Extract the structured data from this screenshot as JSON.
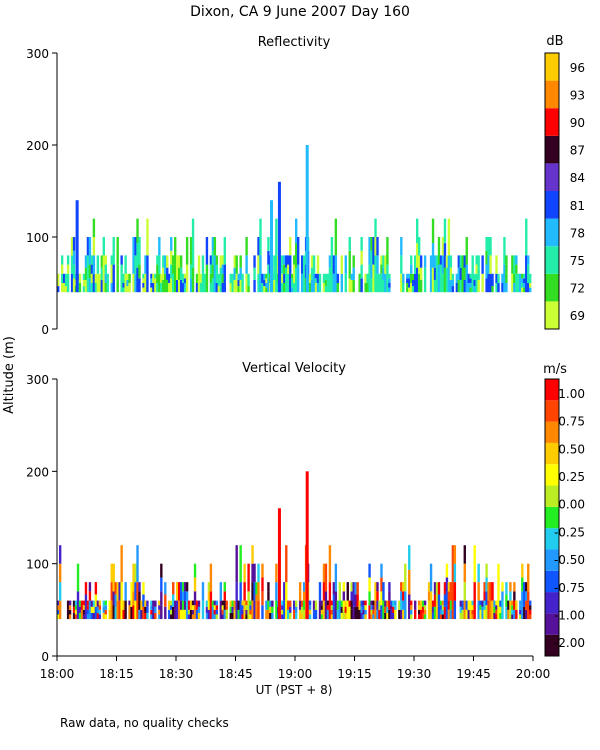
{
  "page_title": "Dixon, CA  9 June 2007  Day 160",
  "shared_y_label": "Altitude (m)",
  "shared_x_label": "UT  (PST + 8)",
  "footnote": "Raw data, no quality checks",
  "colors": {
    "reflectivity_scale": [
      "#ccff33",
      "#33dd22",
      "#22eeaa",
      "#22bbff",
      "#1144ff",
      "#6633cc",
      "#330022",
      "#ff0000",
      "#ff8800",
      "#ffcc00"
    ],
    "velocity_scale": [
      "#330022",
      "#551199",
      "#4422cc",
      "#1155ff",
      "#2299ff",
      "#22ccee",
      "#22ee22",
      "#bbee22",
      "#ffff00",
      "#ffcc00",
      "#ff8800",
      "#ff4400",
      "#ff0000"
    ]
  },
  "chart_data": [
    {
      "type": "heatmap",
      "title": "Reflectivity",
      "xlabel": "UT  (PST + 8)",
      "ylabel": "Altitude (m)",
      "xlim_minutes": [
        0,
        120
      ],
      "x_ticks": [
        "18:00",
        "18:15",
        "18:30",
        "18:45",
        "19:00",
        "19:15",
        "19:30",
        "19:45",
        "20:00"
      ],
      "ylim": [
        0,
        300
      ],
      "y_ticks": [
        0,
        100,
        200,
        300
      ],
      "colorbar": {
        "unit": "dB",
        "levels": [
          69,
          72,
          75,
          78,
          81,
          84,
          87,
          90,
          93,
          96
        ],
        "labels": [
          "69",
          "72",
          "75",
          "78",
          "81",
          "84",
          "87",
          "90",
          "93",
          "96"
        ]
      },
      "echo_base_m": 40,
      "typical_top_m": 80,
      "peak_events": [
        {
          "time": "18:05",
          "top_m": 140,
          "level_db": 81
        },
        {
          "time": "18:54",
          "top_m": 140,
          "level_db": 78
        },
        {
          "time": "18:56",
          "top_m": 160,
          "level_db": 81
        },
        {
          "time": "19:03",
          "top_m": 200,
          "level_db": 78
        }
      ]
    },
    {
      "type": "heatmap",
      "title": "Vertical Velocity",
      "xlabel": "UT  (PST + 8)",
      "ylabel": "Altitude (m)",
      "xlim_minutes": [
        0,
        120
      ],
      "x_ticks": [
        "18:00",
        "18:15",
        "18:30",
        "18:45",
        "19:00",
        "19:15",
        "19:30",
        "19:45",
        "20:00"
      ],
      "ylim": [
        0,
        300
      ],
      "y_ticks": [
        0,
        100,
        200,
        300
      ],
      "colorbar": {
        "unit": "m/s",
        "levels": [
          -2.0,
          -1.0,
          -0.75,
          -0.5,
          -0.25,
          0.0,
          0.25,
          0.5,
          0.75,
          1.0
        ],
        "labels": [
          "-2.00",
          "-1.00",
          "-0.75",
          "-0.50",
          "-0.25",
          "0.00",
          "0.25",
          "0.50",
          "0.75",
          "1.00"
        ]
      },
      "echo_base_m": 40,
      "typical_top_m": 80,
      "peak_events": [
        {
          "time": "19:03",
          "top_m": 200,
          "velocity_ms": 1.0
        },
        {
          "time": "18:56",
          "top_m": 160,
          "velocity_ms": 1.0
        }
      ]
    }
  ]
}
